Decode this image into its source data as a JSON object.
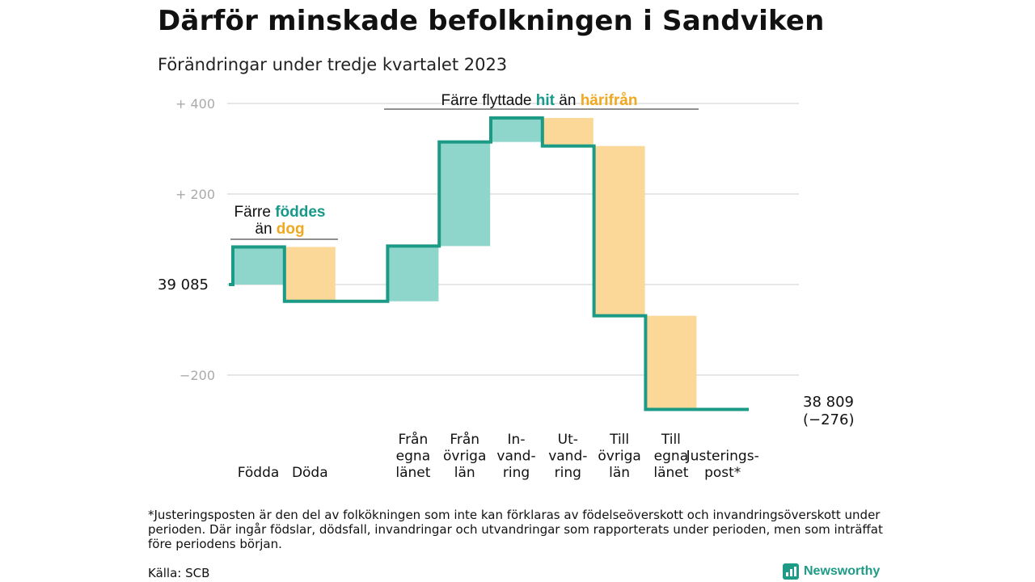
{
  "title": "Därför minskade befolkningen i Sandviken",
  "subtitle": "Förändringar under tredje kvartalet 2023",
  "colors": {
    "increase_fill": "#8ed6cb",
    "decrease_fill": "#fbd897",
    "line": "#1b9a85",
    "accent_teal": "#17998a",
    "accent_orange": "#f0a81e",
    "grid": "#dddddd",
    "brand": "#1e9b87"
  },
  "annotations": {
    "births_deaths": {
      "line1_pre": "Färre ",
      "line1_hl": "föddes",
      "line2_pre": "än ",
      "line2_hl": "dog"
    },
    "migration": {
      "pre": "Färre flyttade ",
      "hl1": "hit",
      "mid": " än ",
      "hl2": "härifrån"
    }
  },
  "start_label": "39  085",
  "end_label": {
    "value": "38 809",
    "change": "(−276)"
  },
  "footnote": "*Justeringsposten är den del av folkökningen som inte kan förklaras av födelseöverskott och invandringsöverskott under perioden. Där ingår födslar, dödsfall, invandringar och utvandringar som rapporterats under perioden, men som inträffat före periodens början.",
  "source": "Källa: SCB",
  "brand": "Newsworthy",
  "chart_data": {
    "type": "waterfall",
    "start_value": 39085,
    "end_value": 38809,
    "total_change": -276,
    "yticks": [
      {
        "value": 400,
        "label": "+ 400"
      },
      {
        "value": 200,
        "label": "+ 200"
      },
      {
        "value": 0,
        "label": "39  085"
      },
      {
        "value": -200,
        "label": "−200"
      }
    ],
    "ylim": [
      -280,
      410
    ],
    "grid": true,
    "steps": [
      {
        "label": [
          "Födda"
        ],
        "delta": 83
      },
      {
        "label": [
          "Döda"
        ],
        "delta": -120
      },
      {
        "label": [],
        "delta": 0
      },
      {
        "label": [
          "Från",
          "egna",
          "länet"
        ],
        "delta": 122
      },
      {
        "label": [
          "Från",
          "övriga",
          "län"
        ],
        "delta": 230
      },
      {
        "label": [
          "In-",
          "vand-",
          "ring"
        ],
        "delta": 53
      },
      {
        "label": [
          "Ut-",
          "vand-",
          "ring"
        ],
        "delta": -62
      },
      {
        "label": [
          "Till",
          "övriga",
          "län"
        ],
        "delta": -375
      },
      {
        "label": [
          "Till",
          "egna",
          "länet"
        ],
        "delta": -207
      },
      {
        "label": [
          "Justerings-",
          "post*"
        ],
        "delta": 0
      }
    ]
  }
}
